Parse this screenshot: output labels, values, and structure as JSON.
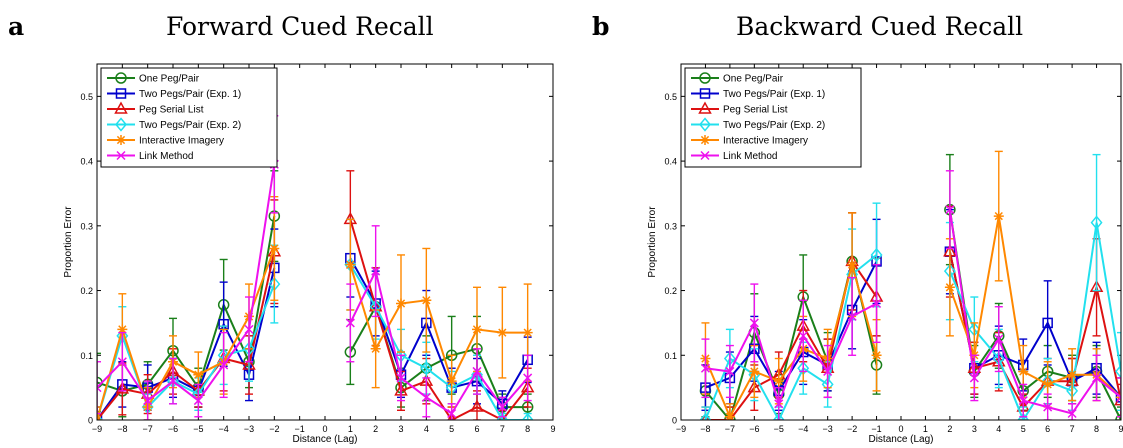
{
  "colors": {
    "one_peg": "#1a7f1a",
    "two_pegs_1": "#0000cc",
    "peg_serial": "#dd1111",
    "two_pegs_2": "#22e0ee",
    "imagery": "#ff8800",
    "link": "#ee11ee"
  },
  "chart_data": [
    {
      "type": "line",
      "letter": "a",
      "title": "Forward Cued Recall",
      "xlabel": "Distance (Lag)",
      "ylabel": "Proportion Error",
      "xlim": [
        -9,
        9
      ],
      "ylim": [
        0,
        0.55
      ],
      "xticks": [
        -9,
        -8,
        -7,
        -6,
        -5,
        -4,
        -3,
        -2,
        -1,
        0,
        1,
        2,
        3,
        4,
        5,
        6,
        7,
        8,
        9
      ],
      "xtick_labels": [
        "−9",
        "−8",
        "−7",
        "−6",
        "−5",
        "−4",
        "−3",
        "−2",
        "−1",
        "0",
        "1",
        "2",
        "3",
        "4",
        "5",
        "6",
        "7",
        "8",
        "9"
      ],
      "yticks": [
        0,
        0.1,
        0.2,
        0.3,
        0.4,
        0.5
      ],
      "ytick_labels": [
        "0",
        "0.1",
        "0.2",
        "0.3",
        "0.4",
        "0.5"
      ],
      "legend_position": "top-left",
      "series": [
        {
          "name": "One Peg/Pair",
          "marker": "circle",
          "color_key": "one_peg",
          "neg": {
            "x": [
              -9,
              -8,
              -7,
              -6,
              -5,
              -4,
              -3,
              -2
            ],
            "y": [
              0.058,
              0.045,
              0.055,
              0.107,
              0.05,
              0.178,
              0.09,
              0.315
            ],
            "err": [
              0.045,
              0.04,
              0.035,
              0.05,
              0.03,
              0.07,
              0.04,
              0.07
            ]
          },
          "pos": {
            "x": [
              1,
              2,
              3,
              4,
              5,
              6,
              7,
              8
            ],
            "y": [
              0.105,
              0.175,
              0.05,
              0.08,
              0.1,
              0.11,
              0.02,
              0.02
            ],
            "err": [
              0.05,
              0.06,
              0.03,
              0.05,
              0.06,
              0.05,
              0.02,
              0.02
            ]
          }
        },
        {
          "name": "Two Pegs/Pair (Exp. 1)",
          "marker": "square",
          "color_key": "two_pegs_1",
          "neg": {
            "x": [
              -9,
              -8,
              -7,
              -6,
              -5,
              -4,
              -3,
              -2
            ],
            "y": [
              0.0,
              0.055,
              0.05,
              0.065,
              0.045,
              0.148,
              0.07,
              0.235
            ],
            "err": [
              0.02,
              0.035,
              0.035,
              0.03,
              0.025,
              0.065,
              0.04,
              0.06
            ]
          },
          "pos": {
            "x": [
              1,
              2,
              3,
              4,
              5,
              6,
              7,
              8
            ],
            "y": [
              0.25,
              0.18,
              0.07,
              0.15,
              0.05,
              0.06,
              0.025,
              0.093
            ],
            "err": [
              0.06,
              0.05,
              0.035,
              0.05,
              0.03,
              0.035,
              0.02,
              0.035
            ]
          }
        },
        {
          "name": "Peg Serial List",
          "marker": "triangle",
          "color_key": "peg_serial",
          "neg": {
            "x": [
              -9,
              -8,
              -7,
              -6,
              -5,
              -4,
              -3,
              -2
            ],
            "y": [
              0.0,
              0.048,
              0.04,
              0.075,
              0.045,
              0.095,
              0.085,
              0.26
            ],
            "err": [
              0.02,
              0.04,
              0.03,
              0.035,
              0.025,
              0.05,
              0.045,
              0.08
            ]
          },
          "pos": {
            "x": [
              1,
              2,
              3,
              4,
              5,
              6,
              7,
              8
            ],
            "y": [
              0.31,
              0.175,
              0.045,
              0.06,
              0.0,
              0.02,
              0.0,
              0.05
            ],
            "err": [
              0.075,
              0.06,
              0.03,
              0.035,
              0.02,
              0.025,
              0.015,
              0.03
            ]
          }
        },
        {
          "name": "Two Pegs/Pair (Exp. 2)",
          "marker": "diamond",
          "color_key": "two_pegs_2",
          "neg": {
            "x": [
              -9,
              -8,
              -7,
              -6,
              -5,
              -4,
              -3,
              -2
            ],
            "y": [
              0.0,
              0.13,
              0.02,
              0.06,
              0.04,
              0.1,
              0.11,
              0.21
            ],
            "err": [
              0.02,
              0.045,
              0.02,
              0.035,
              0.025,
              0.045,
              0.05,
              0.06
            ]
          },
          "pos": {
            "x": [
              1,
              2,
              3,
              4,
              5,
              6,
              7,
              8
            ],
            "y": [
              0.24,
              0.175,
              0.1,
              0.08,
              0.05,
              0.07,
              0.0,
              0.0
            ],
            "err": [
              0.07,
              0.05,
              0.04,
              0.04,
              0.025,
              0.03,
              0.01,
              0.01
            ]
          }
        },
        {
          "name": "Interactive Imagery",
          "marker": "star",
          "color_key": "imagery",
          "neg": {
            "x": [
              -9,
              -8,
              -7,
              -6,
              -5,
              -4,
              -3,
              -2
            ],
            "y": [
              0.0,
              0.14,
              0.02,
              0.09,
              0.07,
              0.09,
              0.16,
              0.265
            ],
            "err": [
              0.02,
              0.055,
              0.03,
              0.04,
              0.035,
              0.05,
              0.05,
              0.08
            ]
          },
          "pos": {
            "x": [
              1,
              2,
              3,
              4,
              5,
              6,
              7,
              8
            ],
            "y": [
              0.24,
              0.11,
              0.18,
              0.185,
              0.06,
              0.14,
              0.135,
              0.135
            ],
            "err": [
              0.07,
              0.06,
              0.075,
              0.08,
              0.04,
              0.065,
              0.07,
              0.075
            ]
          }
        },
        {
          "name": "Link Method",
          "marker": "x",
          "color_key": "link",
          "neg": {
            "x": [
              -9,
              -8,
              -7,
              -6,
              -5,
              -4,
              -3,
              -2
            ],
            "y": [
              0.05,
              0.09,
              0.03,
              0.06,
              0.03,
              0.085,
              0.14,
              0.395
            ],
            "err": [
              0.04,
              0.045,
              0.03,
              0.035,
              0.025,
              0.05,
              0.05,
              0.075
            ]
          },
          "pos": {
            "x": [
              1,
              2,
              3,
              4,
              5,
              6,
              7,
              8
            ],
            "y": [
              0.15,
              0.23,
              0.065,
              0.035,
              0.01,
              0.075,
              0.02,
              0.065
            ],
            "err": [
              0.06,
              0.07,
              0.035,
              0.03,
              0.015,
              0.035,
              0.015,
              0.035
            ]
          }
        }
      ]
    },
    {
      "type": "line",
      "letter": "b",
      "title": "Backward Cued Recall",
      "xlabel": "Distance (Lag)",
      "ylabel": "Proportion Error",
      "xlim": [
        -9,
        9
      ],
      "ylim": [
        0,
        0.55
      ],
      "xticks": [
        -9,
        -8,
        -7,
        -6,
        -5,
        -4,
        -3,
        -2,
        -1,
        0,
        1,
        2,
        3,
        4,
        5,
        6,
        7,
        8,
        9
      ],
      "xtick_labels": [
        "−9",
        "−8",
        "−7",
        "−6",
        "−5",
        "−4",
        "−3",
        "−2",
        "−1",
        "0",
        "1",
        "2",
        "3",
        "4",
        "5",
        "6",
        "7",
        "8",
        "9"
      ],
      "yticks": [
        0,
        0.1,
        0.2,
        0.3,
        0.4,
        0.5
      ],
      "ytick_labels": [
        "0",
        "0.1",
        "0.2",
        "0.3",
        "0.4",
        "0.5"
      ],
      "legend_position": "top-left",
      "series": [
        {
          "name": "One Peg/Pair",
          "marker": "circle",
          "color_key": "one_peg",
          "neg": {
            "x": [
              -8,
              -7,
              -6,
              -5,
              -4,
              -3,
              -2,
              -1
            ],
            "y": [
              0.045,
              0.0,
              0.135,
              0.04,
              0.19,
              0.09,
              0.245,
              0.085
            ],
            "err": [
              0.04,
              0.02,
              0.06,
              0.03,
              0.065,
              0.045,
              0.075,
              0.045
            ]
          },
          "pos": {
            "x": [
              2,
              3,
              4,
              5,
              6,
              7,
              8,
              9
            ],
            "y": [
              0.325,
              0.075,
              0.13,
              0.045,
              0.075,
              0.065,
              0.075,
              0.0
            ],
            "err": [
              0.085,
              0.04,
              0.05,
              0.03,
              0.04,
              0.035,
              0.04,
              0.02
            ]
          }
        },
        {
          "name": "Two Pegs/Pair (Exp. 1)",
          "marker": "square",
          "color_key": "two_pegs_1",
          "neg": {
            "x": [
              -8,
              -7,
              -6,
              -5,
              -4,
              -3,
              -2,
              -1
            ],
            "y": [
              0.05,
              0.065,
              0.11,
              0.045,
              0.105,
              0.085,
              0.17,
              0.245
            ],
            "err": [
              0.035,
              0.04,
              0.05,
              0.03,
              0.05,
              0.04,
              0.06,
              0.065
            ]
          },
          "pos": {
            "x": [
              2,
              3,
              4,
              5,
              6,
              7,
              8,
              9
            ],
            "y": [
              0.26,
              0.08,
              0.1,
              0.085,
              0.15,
              0.06,
              0.08,
              0.035
            ],
            "err": [
              0.065,
              0.04,
              0.045,
              0.04,
              0.065,
              0.035,
              0.04,
              0.03
            ]
          }
        },
        {
          "name": "Peg Serial List",
          "marker": "triangle",
          "color_key": "peg_serial",
          "neg": {
            "x": [
              -8,
              -7,
              -6,
              -5,
              -4,
              -3,
              -2,
              -1
            ],
            "y": [
              0.0,
              0.0,
              0.05,
              0.07,
              0.145,
              0.08,
              0.245,
              0.19
            ],
            "err": [
              0.02,
              0.02,
              0.035,
              0.035,
              0.055,
              0.045,
              0.075,
              0.06
            ]
          },
          "pos": {
            "x": [
              2,
              3,
              4,
              5,
              6,
              7,
              8,
              9
            ],
            "y": [
              0.26,
              0.08,
              0.09,
              0.02,
              0.06,
              0.06,
              0.205,
              0.03
            ],
            "err": [
              0.07,
              0.04,
              0.045,
              0.02,
              0.035,
              0.035,
              0.075,
              0.025
            ]
          }
        },
        {
          "name": "Two Pegs/Pair (Exp. 2)",
          "marker": "diamond",
          "color_key": "two_pegs_2",
          "neg": {
            "x": [
              -8,
              -7,
              -6,
              -5,
              -4,
              -3,
              -2,
              -1
            ],
            "y": [
              0.0,
              0.095,
              0.07,
              0.0,
              0.08,
              0.055,
              0.225,
              0.255
            ],
            "err": [
              0.02,
              0.045,
              0.04,
              0.02,
              0.04,
              0.035,
              0.07,
              0.08
            ]
          },
          "pos": {
            "x": [
              2,
              3,
              4,
              5,
              6,
              7,
              8,
              9
            ],
            "y": [
              0.23,
              0.14,
              0.095,
              0.0,
              0.06,
              0.045,
              0.305,
              0.075
            ],
            "err": [
              0.075,
              0.05,
              0.045,
              0.02,
              0.035,
              0.03,
              0.105,
              0.06
            ]
          }
        },
        {
          "name": "Interactive Imagery",
          "marker": "star",
          "color_key": "imagery",
          "neg": {
            "x": [
              -8,
              -7,
              -6,
              -5,
              -4,
              -3,
              -2,
              -1
            ],
            "y": [
              0.095,
              0.005,
              0.075,
              0.06,
              0.11,
              0.095,
              0.24,
              0.1
            ],
            "err": [
              0.055,
              0.02,
              0.04,
              0.035,
              0.05,
              0.045,
              0.08,
              0.055
            ]
          },
          "pos": {
            "x": [
              2,
              3,
              4,
              5,
              6,
              7,
              8,
              9
            ],
            "y": [
              0.205,
              0.1,
              0.315,
              0.075,
              0.055,
              0.07,
              0.07,
              0.035
            ],
            "err": [
              0.075,
              0.05,
              0.1,
              0.04,
              0.035,
              0.04,
              0.04,
              0.03
            ]
          }
        },
        {
          "name": "Link Method",
          "marker": "x",
          "color_key": "link",
          "neg": {
            "x": [
              -8,
              -7,
              -6,
              -5,
              -4,
              -3,
              -2,
              -1
            ],
            "y": [
              0.08,
              0.075,
              0.15,
              0.025,
              0.13,
              0.075,
              0.16,
              0.18
            ],
            "err": [
              0.045,
              0.04,
              0.06,
              0.025,
              0.055,
              0.04,
              0.06,
              0.06
            ]
          },
          "pos": {
            "x": [
              2,
              3,
              4,
              5,
              6,
              7,
              8,
              9
            ],
            "y": [
              0.325,
              0.065,
              0.125,
              0.03,
              0.02,
              0.01,
              0.065,
              0.035
            ],
            "err": [
              0.06,
              0.035,
              0.05,
              0.025,
              0.02,
              0.015,
              0.035,
              0.03
            ]
          }
        }
      ]
    }
  ]
}
